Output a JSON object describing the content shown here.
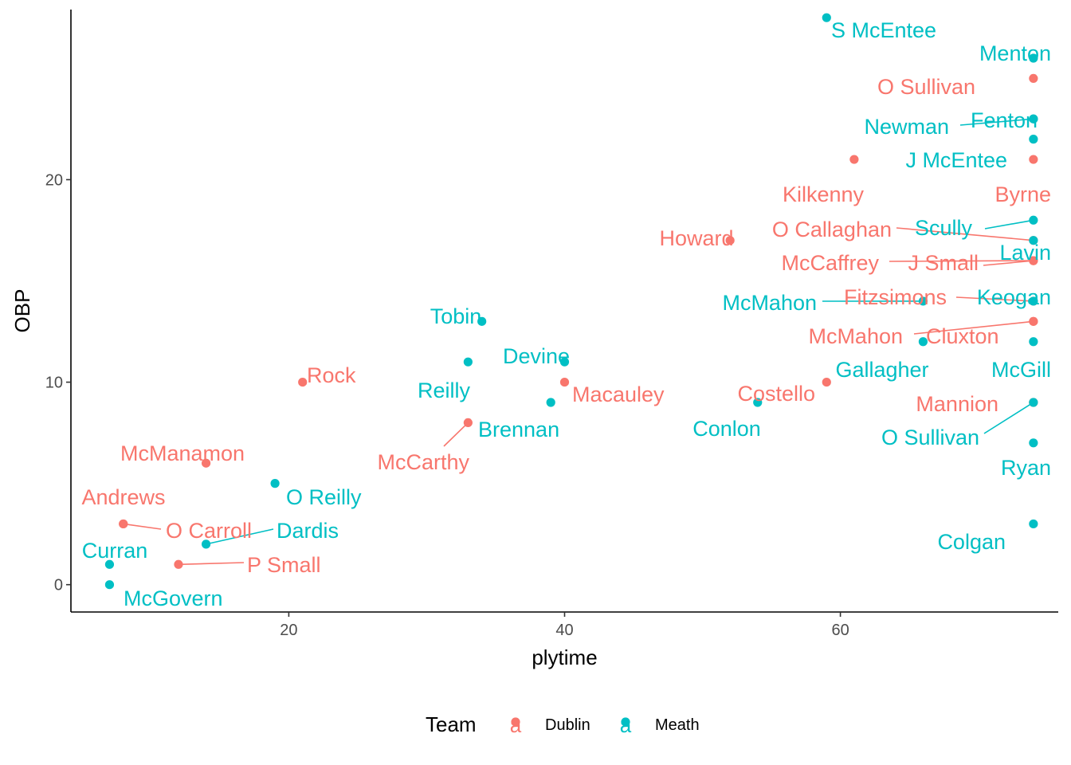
{
  "chart_data": {
    "type": "scatter",
    "xlabel": "plytime",
    "ylabel": "OBP",
    "xlim": [
      4.2,
      75.8
    ],
    "ylim": [
      -1.35,
      28.4
    ],
    "x_ticks": [
      20,
      40,
      60
    ],
    "y_ticks": [
      0,
      10,
      20
    ],
    "grid": false,
    "legend": {
      "title": "Team",
      "position": "bottom",
      "key_glyph": "a",
      "entries": [
        {
          "name": "Dublin",
          "color": "#F8766D"
        },
        {
          "name": "Meath",
          "color": "#00BFC4"
        }
      ]
    },
    "series": [
      {
        "name": "Dublin",
        "color": "#F8766D",
        "points": [
          {
            "x": 74,
            "y": 25,
            "label": "O Sullivan"
          },
          {
            "x": 74,
            "y": 21,
            "label": "Byrne"
          },
          {
            "x": 61,
            "y": 21,
            "label": "Kilkenny"
          },
          {
            "x": 52,
            "y": 17,
            "label": "Howard"
          },
          {
            "x": 74,
            "y": 17,
            "label": "O Callaghan"
          },
          {
            "x": 74,
            "y": 16,
            "label": "McCaffrey"
          },
          {
            "x": 74,
            "y": 16,
            "label": "J Small"
          },
          {
            "x": 74,
            "y": 14,
            "label": "Fitzsimons"
          },
          {
            "x": 74,
            "y": 13,
            "label": "McMahon"
          },
          {
            "x": 74,
            "y": 13,
            "label": "Cluxton"
          },
          {
            "x": 59,
            "y": 10,
            "label": "Costello"
          },
          {
            "x": 74,
            "y": 9,
            "label": "Mannion"
          },
          {
            "x": 21,
            "y": 10,
            "label": "Rock"
          },
          {
            "x": 40,
            "y": 10,
            "label": "Macauley"
          },
          {
            "x": 33,
            "y": 8,
            "label": "McCarthy"
          },
          {
            "x": 14,
            "y": 6,
            "label": "McManamon"
          },
          {
            "x": 8,
            "y": 3,
            "label": "Andrews"
          },
          {
            "x": 8,
            "y": 3,
            "label": "O Carroll"
          },
          {
            "x": 12,
            "y": 1,
            "label": "P Small"
          }
        ]
      },
      {
        "name": "Meath",
        "color": "#00BFC4",
        "points": [
          {
            "x": 59,
            "y": 28,
            "label": "S McEntee"
          },
          {
            "x": 74,
            "y": 26,
            "label": "Menton"
          },
          {
            "x": 74,
            "y": 23,
            "label": "Newman"
          },
          {
            "x": 74,
            "y": 23,
            "label": "Fenton"
          },
          {
            "x": 74,
            "y": 22,
            "label": "J McEntee"
          },
          {
            "x": 74,
            "y": 18,
            "label": "Scully"
          },
          {
            "x": 74,
            "y": 17,
            "label": "Lavin"
          },
          {
            "x": 66,
            "y": 14,
            "label": "McMahon"
          },
          {
            "x": 74,
            "y": 14,
            "label": "Keogan"
          },
          {
            "x": 66,
            "y": 12,
            "label": "Gallagher"
          },
          {
            "x": 74,
            "y": 12,
            "label": "McGill"
          },
          {
            "x": 74,
            "y": 9,
            "label": "O Sullivan"
          },
          {
            "x": 74,
            "y": 7,
            "label": "Ryan"
          },
          {
            "x": 74,
            "y": 3,
            "label": "Colgan"
          },
          {
            "x": 54,
            "y": 9,
            "label": "Conlon"
          },
          {
            "x": 34,
            "y": 13,
            "label": "Tobin"
          },
          {
            "x": 40,
            "y": 11,
            "label": "Devine"
          },
          {
            "x": 33,
            "y": 11,
            "label": "Reilly"
          },
          {
            "x": 39,
            "y": 9,
            "label": "Brennan"
          },
          {
            "x": 19,
            "y": 5,
            "label": "O Reilly"
          },
          {
            "x": 14,
            "y": 2,
            "label": "Dardis"
          },
          {
            "x": 7,
            "y": 1,
            "label": "Curran"
          },
          {
            "x": 7,
            "y": 0,
            "label": "McGovern"
          }
        ]
      }
    ]
  }
}
